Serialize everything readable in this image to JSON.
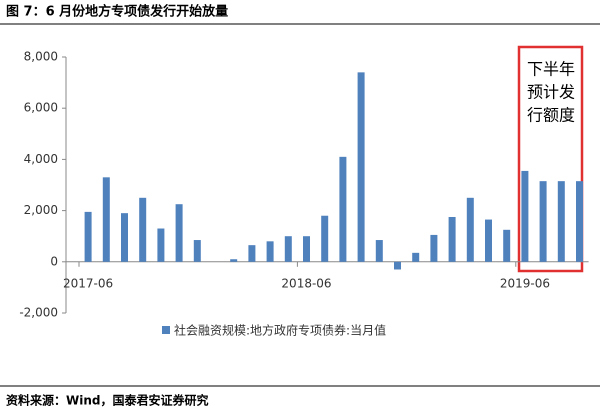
{
  "chart_data": {
    "type": "bar",
    "title": "图 7：6 月份地方专项债发行开始放量",
    "source": "资料来源：Wind，国泰君安证券研究",
    "annotation": [
      "下半年",
      "预计发",
      "行额度"
    ],
    "categories": [
      "2017-06",
      null,
      null,
      null,
      null,
      null,
      null,
      null,
      null,
      null,
      null,
      null,
      "2018-06",
      null,
      null,
      null,
      null,
      null,
      null,
      null,
      null,
      null,
      null,
      null,
      "2019-06",
      null,
      null,
      null
    ],
    "series": [
      {
        "name": "社会融资规模:地方政府专项债券:当月值",
        "color": "#4f81bd",
        "values": [
          1950,
          3300,
          1900,
          2500,
          1300,
          2250,
          850,
          0,
          100,
          650,
          800,
          1000,
          1000,
          1800,
          4100,
          7400,
          850,
          -300,
          350,
          1050,
          1750,
          2500,
          1650,
          1250,
          3550,
          3150,
          3150,
          3150
        ]
      }
    ],
    "ylim": [
      -2000,
      8000
    ],
    "yticks": [
      {
        "value": -2000,
        "label": "-2,000"
      },
      0,
      {
        "value": 2000,
        "label": "2,000"
      },
      {
        "value": 4000,
        "label": "4,000"
      },
      {
        "value": 6000,
        "label": "6,000"
      },
      {
        "value": 8000,
        "label": "8,000"
      }
    ],
    "legend": "bottom"
  }
}
